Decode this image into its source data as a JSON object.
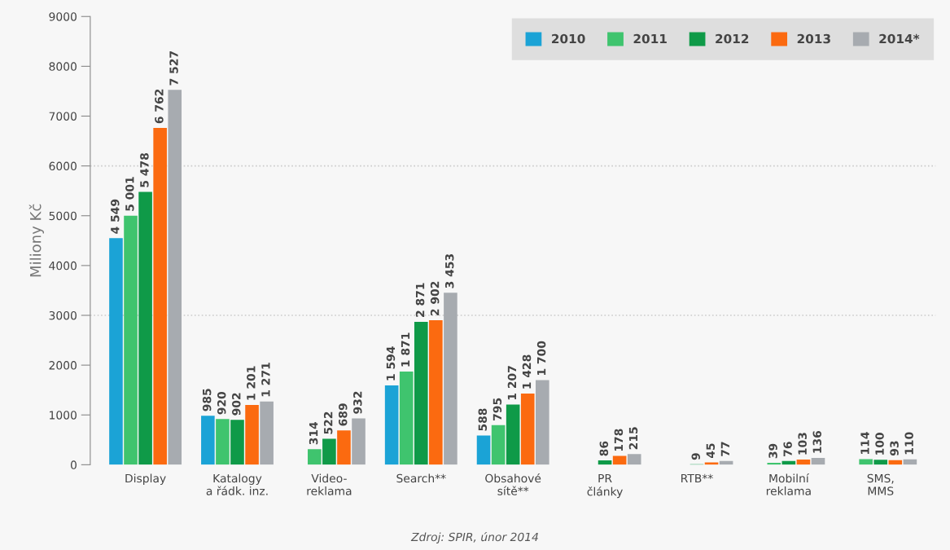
{
  "chart_data": {
    "type": "bar",
    "ylabel": "Miliony Kč",
    "categories": [
      "Display",
      "Katalogy\na řádk. inz.",
      "Video-\nreklama",
      "Search**",
      "Obsahové\nsítě**",
      "PR\nčlánky",
      "RTB**",
      "Mobilní\nreklama",
      "SMS,\nMMS"
    ],
    "series": [
      {
        "name": "2010",
        "color": "#1ba3d6",
        "values": [
          4549,
          985,
          null,
          1594,
          588,
          null,
          null,
          null,
          null
        ]
      },
      {
        "name": "2011",
        "color": "#3fc46e",
        "values": [
          5001,
          920,
          314,
          1871,
          795,
          null,
          null,
          39,
          114
        ]
      },
      {
        "name": "2012",
        "color": "#0f9a48",
        "values": [
          5478,
          902,
          522,
          2871,
          1207,
          86,
          9,
          76,
          100
        ]
      },
      {
        "name": "2013",
        "color": "#fb6a10",
        "values": [
          6762,
          1201,
          689,
          2902,
          1428,
          178,
          45,
          103,
          93
        ]
      },
      {
        "name": "2014*",
        "color": "#a7abb0",
        "values": [
          7527,
          1271,
          932,
          3453,
          1700,
          215,
          77,
          136,
          110
        ]
      }
    ],
    "ylim": [
      0,
      9000
    ],
    "yticks": [
      0,
      1000,
      2000,
      3000,
      4000,
      5000,
      6000,
      7000,
      8000,
      9000
    ],
    "ref_lines": [
      {
        "axis": "y",
        "value": 3000,
        "label": null,
        "color": "#cccccc",
        "line_style": "dotted"
      },
      {
        "axis": "y",
        "value": 6000,
        "label": null,
        "color": "#cccccc",
        "line_style": "dotted"
      }
    ],
    "data_labels": true,
    "legend": "top right",
    "grid": false,
    "annotations": [
      "Zdroj: SPIR, únor 2014"
    ]
  }
}
